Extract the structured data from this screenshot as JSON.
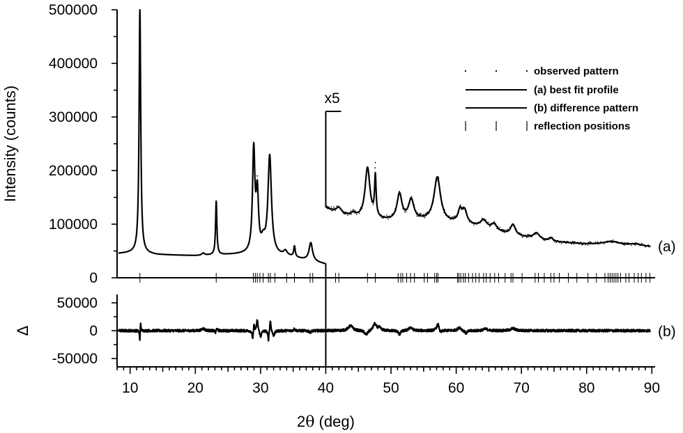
{
  "chart_data": {
    "type": "line",
    "x_axis": {
      "label_prefix": "2",
      "label_symbol": "θ",
      "label_suffix": " (deg)",
      "range": [
        8,
        90.5
      ],
      "ticks": [
        "10",
        "20",
        "30",
        "40",
        "50",
        "60",
        "70",
        "80",
        "90"
      ]
    },
    "panel_a": {
      "y_label": "Intensity (counts)",
      "y_range": [
        0,
        500000
      ],
      "y_ticks": [
        "0",
        "100000",
        "200000",
        "300000",
        "400000",
        "500000"
      ],
      "label": "(a)",
      "scale_marker": {
        "text": "x5",
        "x": 40,
        "factor": 5
      }
    },
    "panel_b": {
      "y_label": "Δ",
      "y_range": [
        -65000,
        65000
      ],
      "y_ticks": [
        "-50000",
        "0",
        "50000"
      ],
      "label": "(b)"
    },
    "legend": {
      "position": "top-right",
      "entries": [
        {
          "marker": "dots",
          "label": "observed pattern"
        },
        {
          "marker": "line",
          "label": "(a) best fit profile"
        },
        {
          "marker": "line",
          "label": "(b) difference pattern"
        },
        {
          "marker": "bars",
          "label": "reflection positions"
        }
      ]
    },
    "baseline": [
      [
        8.2,
        45000
      ],
      [
        11,
        47000
      ],
      [
        14,
        43000
      ],
      [
        20,
        41000
      ],
      [
        28,
        44000
      ],
      [
        34,
        40000
      ],
      [
        38,
        30000
      ],
      [
        40,
        25000
      ],
      [
        44,
        22000
      ],
      [
        50,
        21000
      ],
      [
        56,
        21000
      ],
      [
        62,
        19500
      ],
      [
        68,
        16000
      ],
      [
        74,
        13500
      ],
      [
        80,
        12500
      ],
      [
        86,
        12000
      ],
      [
        90,
        11500
      ]
    ],
    "peaks": [
      {
        "x": 11.5,
        "h": 455000,
        "w": 0.15
      },
      {
        "x": 21.2,
        "h": 4000,
        "w": 0.25
      },
      {
        "x": 23.2,
        "h": 100000,
        "w": 0.12
      },
      {
        "x": 28.95,
        "h": 190000,
        "w": 0.22
      },
      {
        "x": 29.5,
        "h": 105000,
        "w": 0.22
      },
      {
        "x": 30.4,
        "h": 20000,
        "w": 0.35
      },
      {
        "x": 31.4,
        "h": 183000,
        "w": 0.32
      },
      {
        "x": 33.8,
        "h": 8000,
        "w": 0.3
      },
      {
        "x": 35.2,
        "h": 20000,
        "w": 0.14
      },
      {
        "x": 37.7,
        "h": 34000,
        "w": 0.32
      },
      {
        "x": 42.0,
        "h": 2000,
        "w": 0.5
      },
      {
        "x": 44.2,
        "h": 1500,
        "w": 0.5
      },
      {
        "x": 46.4,
        "h": 19000,
        "w": 0.45
      },
      {
        "x": 47.6,
        "h": 15000,
        "w": 0.14
      },
      {
        "x": 51.3,
        "h": 9800,
        "w": 0.45
      },
      {
        "x": 53.1,
        "h": 7600,
        "w": 0.5
      },
      {
        "x": 57.1,
        "h": 16500,
        "w": 0.6
      },
      {
        "x": 60.6,
        "h": 4800,
        "w": 0.4
      },
      {
        "x": 61.3,
        "h": 4500,
        "w": 0.4
      },
      {
        "x": 64.2,
        "h": 3000,
        "w": 0.6
      },
      {
        "x": 65.8,
        "h": 2500,
        "w": 0.5
      },
      {
        "x": 68.7,
        "h": 4000,
        "w": 0.45
      },
      {
        "x": 72.3,
        "h": 2400,
        "w": 0.6
      },
      {
        "x": 74.5,
        "h": 1300,
        "w": 0.4
      },
      {
        "x": 83.8,
        "h": 1300,
        "w": 1.5
      },
      {
        "x": 87.5,
        "h": 700,
        "w": 1.0
      }
    ],
    "reflection_positions": [
      11.5,
      23.2,
      28.9,
      29.2,
      29.5,
      29.9,
      30.4,
      31.2,
      31.5,
      32.2,
      34.0,
      35.2,
      37.6,
      38.0,
      41.5,
      42.0,
      46.4,
      47.6,
      51.1,
      51.5,
      51.8,
      52.4,
      53.0,
      53.6,
      55.1,
      55.6,
      56.7,
      57.0,
      57.2,
      60.2,
      60.4,
      60.7,
      61.1,
      61.4,
      61.9,
      62.5,
      63.0,
      63.5,
      64.2,
      64.6,
      65.2,
      65.9,
      66.5,
      67.5,
      68.4,
      68.7,
      70.1,
      72.1,
      72.6,
      73.5,
      74.5,
      75.0,
      75.8,
      77.2,
      78.5,
      80.2,
      81.5,
      82.8,
      83.3,
      83.6,
      83.9,
      84.2,
      84.5,
      84.8,
      85.2,
      86.0,
      86.5,
      87.3,
      87.9,
      88.4,
      89.1,
      89.7
    ],
    "difference_features": [
      {
        "x": 11.5,
        "h": -28000,
        "w": 0.07
      },
      {
        "x": 11.58,
        "h": 25000,
        "w": 0.07
      },
      {
        "x": 21.2,
        "h": 4000,
        "w": 0.25
      },
      {
        "x": 23.1,
        "h": -5000,
        "w": 0.08
      },
      {
        "x": 23.3,
        "h": 5000,
        "w": 0.08
      },
      {
        "x": 28.8,
        "h": -16000,
        "w": 0.12
      },
      {
        "x": 29.0,
        "h": 14000,
        "w": 0.1
      },
      {
        "x": 29.5,
        "h": 20000,
        "w": 0.12
      },
      {
        "x": 30.0,
        "h": -12000,
        "w": 0.15
      },
      {
        "x": 31.2,
        "h": -18000,
        "w": 0.1
      },
      {
        "x": 31.5,
        "h": 21000,
        "w": 0.1
      },
      {
        "x": 32.0,
        "h": -9000,
        "w": 0.2
      },
      {
        "x": 35.2,
        "h": 4000,
        "w": 0.1
      },
      {
        "x": 37.6,
        "h": -3000,
        "w": 0.2
      },
      {
        "x": 43.8,
        "h": 9000,
        "w": 0.4
      },
      {
        "x": 46.2,
        "h": -8000,
        "w": 0.3
      },
      {
        "x": 47.5,
        "h": 12000,
        "w": 0.3
      },
      {
        "x": 48.2,
        "h": 5000,
        "w": 0.3
      },
      {
        "x": 51.3,
        "h": -7000,
        "w": 0.2
      },
      {
        "x": 53.0,
        "h": 6000,
        "w": 0.3
      },
      {
        "x": 57.2,
        "h": 12000,
        "w": 0.25
      },
      {
        "x": 57.6,
        "h": -6000,
        "w": 0.2
      },
      {
        "x": 60.5,
        "h": 6000,
        "w": 0.3
      },
      {
        "x": 61.5,
        "h": -5000,
        "w": 0.25
      },
      {
        "x": 64.5,
        "h": 3000,
        "w": 0.4
      },
      {
        "x": 68.7,
        "h": 4000,
        "w": 0.4
      }
    ]
  }
}
